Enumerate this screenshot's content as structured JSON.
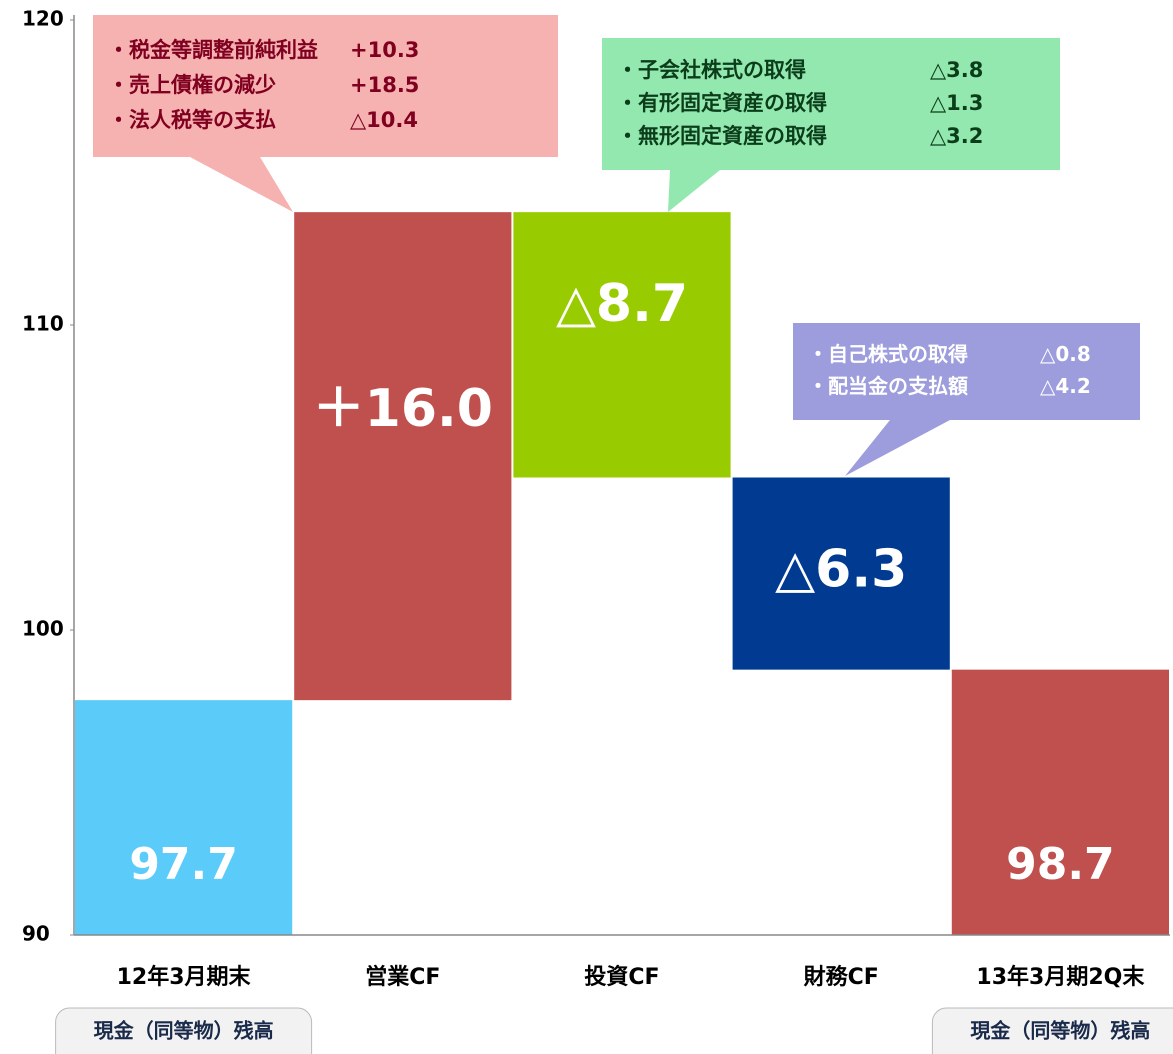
{
  "chart_data": {
    "type": "waterfall",
    "categories": [
      "12年3月期末",
      "営業CF",
      "投資CF",
      "財務CF",
      "13年3月期2Q末"
    ],
    "values": [
      97.7,
      16.0,
      -8.7,
      -6.3,
      98.7
    ],
    "value_labels": [
      "97.7",
      "＋16.0",
      "△8.7",
      "△6.3",
      "98.7"
    ],
    "measure": [
      "absolute",
      "relative",
      "relative",
      "relative",
      "absolute"
    ],
    "colors": [
      "#5bcbfa",
      "#c0504d",
      "#99cc00",
      "#003a91",
      "#c0504d"
    ],
    "ylim": [
      90,
      120
    ],
    "yticks": [
      90,
      100,
      110,
      120
    ],
    "annotations": [
      {
        "color": "#f6b1b1",
        "text_color": "#800020",
        "lines": [
          [
            "・税金等調整前純利益",
            "+10.3"
          ],
          [
            "・売上債権の減少",
            "+18.5"
          ],
          [
            "・法人税等の支払",
            "△10.4"
          ]
        ]
      },
      {
        "color": "#92e8ae",
        "text_color": "#0b3d1a",
        "lines": [
          [
            "・子会社株式の取得",
            "△3.8"
          ],
          [
            "・有形固定資産の取得",
            "△1.3"
          ],
          [
            "・無形固定資産の取得",
            "△3.2"
          ]
        ]
      },
      {
        "color": "#9d9cdc",
        "text_color": "#ffffff",
        "lines": [
          [
            "・自己株式の取得",
            "△0.8"
          ],
          [
            "・配当金の支払額",
            "△4.2"
          ]
        ]
      }
    ],
    "bottom_notes": [
      "現金（同等物）残高",
      "現金（同等物）残高"
    ]
  }
}
